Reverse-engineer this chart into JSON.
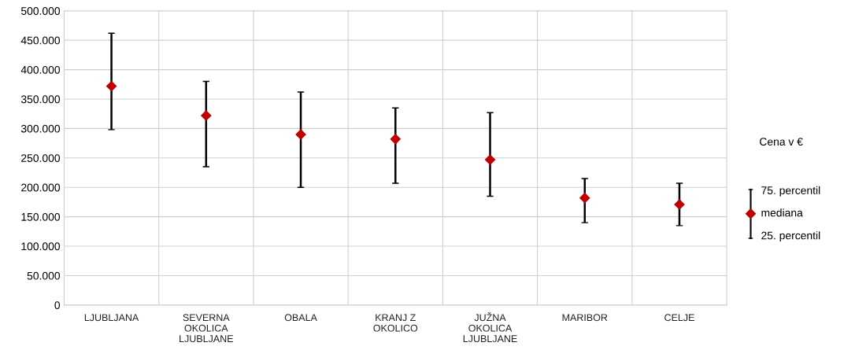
{
  "chart_data": {
    "type": "scatter",
    "categories": [
      "LJUBLJANA",
      "SEVERNA\nOKOLICA\nLJUBLJANE",
      "OBALA",
      "KRANJ Z\nOKOLICO",
      "JUŽNA\nOKOLICA\nLJUBLJANE",
      "MARIBOR",
      "CELJE"
    ],
    "series": [
      {
        "name": "mediana",
        "color": "#c00000",
        "values": [
          372000,
          322000,
          290000,
          282000,
          247000,
          182000,
          171000
        ],
        "errors": [
          [
            298000,
            462000
          ],
          [
            235000,
            380000
          ],
          [
            200000,
            362000
          ],
          [
            207000,
            335000
          ],
          [
            185000,
            327000
          ],
          [
            140000,
            215000
          ],
          [
            135000,
            207000
          ]
        ]
      }
    ],
    "ylim": [
      0,
      500000
    ],
    "yticks": [
      {
        "value": 0,
        "label": "0"
      },
      {
        "value": 50000,
        "label": "50.000"
      },
      {
        "value": 100000,
        "label": "100.000"
      },
      {
        "value": 150000,
        "label": "150.000"
      },
      {
        "value": 200000,
        "label": "200.000"
      },
      {
        "value": 250000,
        "label": "250.000"
      },
      {
        "value": 300000,
        "label": "300.000"
      },
      {
        "value": 350000,
        "label": "350.000"
      },
      {
        "value": 400000,
        "label": "400.000"
      },
      {
        "value": 450000,
        "label": "450.000"
      },
      {
        "value": 500000,
        "label": "500.000"
      }
    ],
    "grid": true,
    "marker": "diamond",
    "legend": "right",
    "legend_title": "Cena v €",
    "annotations": [
      "75. percentil",
      "25. percentil"
    ]
  }
}
